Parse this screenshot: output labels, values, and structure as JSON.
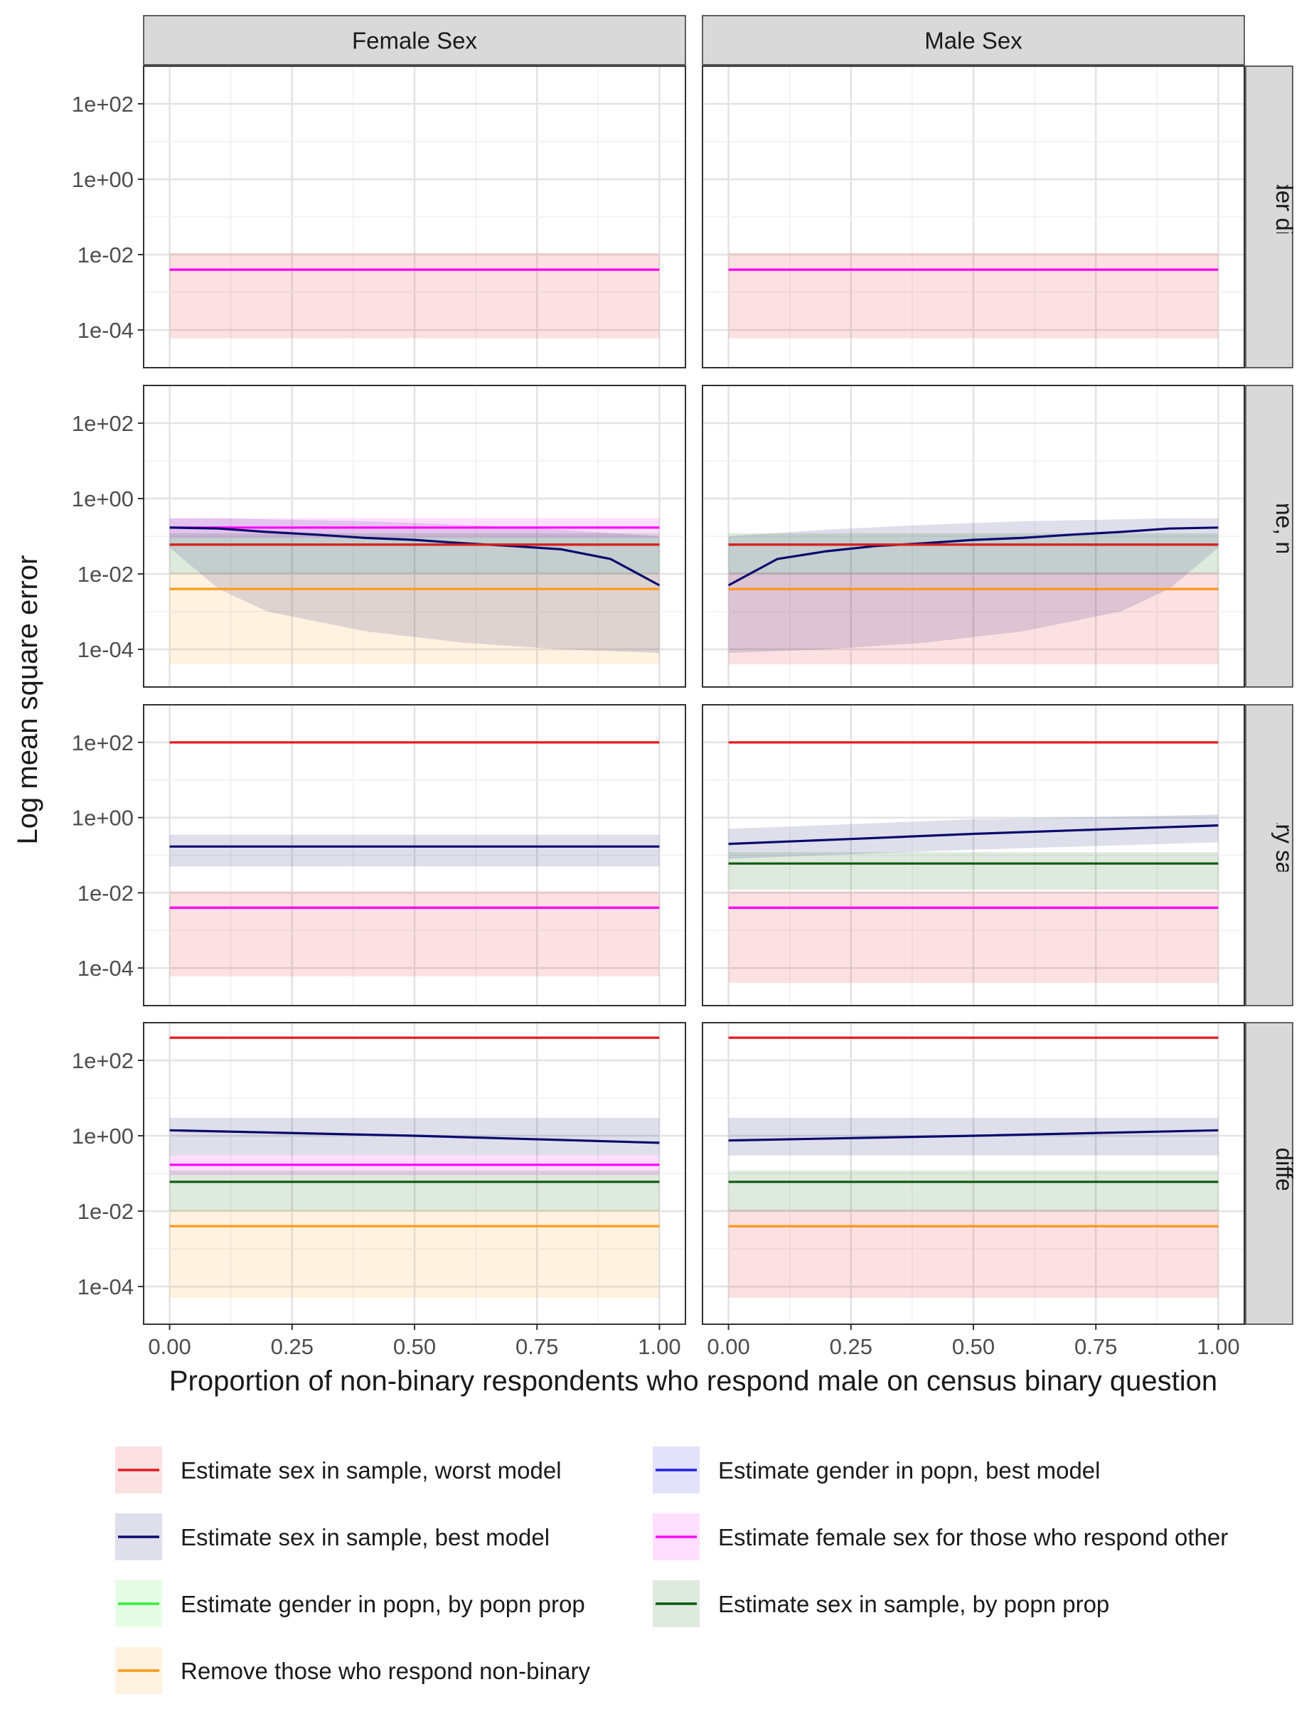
{
  "chart_data": {
    "type": "line",
    "title": "",
    "xlabel": "Proportion of non-binary respondents who respond male on census binary question",
    "ylabel": "Log mean square error",
    "x_scale": "linear",
    "y_scale": "log10",
    "xlim": [
      0,
      1
    ],
    "ylim": [
      1e-05,
      1000
    ],
    "grid": true,
    "legend_position": "bottom",
    "x_ticks": [
      0,
      0.25,
      0.5,
      0.75,
      1
    ],
    "x_tick_labels": [
      "0.00",
      "0.25",
      "0.50",
      "0.75",
      "1.00"
    ],
    "y_ticks": [
      0.0001,
      0.01,
      1,
      100
    ],
    "y_tick_labels": [
      "1e-04",
      "1e-02",
      "1e+00",
      "1e+02"
    ],
    "facet_columns": [
      "Female Sex",
      "Male Sex"
    ],
    "facet_rows": [
      "No gender differences",
      "emale same, non-binary d",
      ", non-binary same, male d",
      "All different"
    ],
    "series": [
      {
        "key": "worst",
        "name": "Estimate sex in sample, worst model",
        "color": "#e41a1c"
      },
      {
        "key": "gender_best",
        "name": "Estimate gender in popn, best model",
        "color": "#1f1fe0"
      },
      {
        "key": "best",
        "name": "Estimate sex in sample, best model",
        "color": "#0a0a6e"
      },
      {
        "key": "female_other",
        "name": "Estimate female sex for those who respond other",
        "color": "#ff00ff"
      },
      {
        "key": "gender_prop",
        "name": "Estimate gender in popn, by popn prop",
        "color": "#33ee33"
      },
      {
        "key": "sex_prop",
        "name": "Estimate sex in sample, by popn prop",
        "color": "#0b5a0b"
      },
      {
        "key": "remove",
        "name": "Remove those who respond non-binary",
        "color": "#ff9a1a"
      }
    ],
    "panels": [
      {
        "row": 0,
        "col": 0,
        "lines": [
          {
            "series": "sex_prop",
            "y": [
              0.004,
              0.004
            ]
          },
          {
            "series": "remove",
            "y": [
              0.004,
              0.004
            ]
          },
          {
            "series": "female_other",
            "y": [
              0.004,
              0.004
            ]
          }
        ],
        "bands": [
          {
            "series": "worst",
            "x": [
              0,
              1
            ],
            "lo": [
              6e-05,
              6e-05
            ],
            "hi": [
              0.011,
              0.011
            ]
          }
        ]
      },
      {
        "row": 0,
        "col": 1,
        "lines": [
          {
            "series": "sex_prop",
            "y": [
              0.004,
              0.004
            ]
          },
          {
            "series": "remove",
            "y": [
              0.004,
              0.004
            ]
          },
          {
            "series": "female_other",
            "y": [
              0.004,
              0.004
            ]
          }
        ],
        "bands": [
          {
            "series": "worst",
            "x": [
              0,
              1
            ],
            "lo": [
              6e-05,
              6e-05
            ],
            "hi": [
              0.011,
              0.011
            ]
          }
        ]
      },
      {
        "row": 1,
        "col": 0,
        "lines": [
          {
            "series": "female_other",
            "y": [
              0.17,
              0.17
            ]
          },
          {
            "series": "best",
            "x": [
              0,
              0.1,
              0.2,
              0.3,
              0.4,
              0.5,
              0.6,
              0.7,
              0.8,
              0.9,
              1
            ],
            "y": [
              0.17,
              0.16,
              0.13,
              0.11,
              0.09,
              0.08,
              0.065,
              0.055,
              0.045,
              0.025,
              0.005
            ]
          },
          {
            "series": "sex_prop",
            "y": [
              0.06,
              0.06
            ]
          },
          {
            "series": "worst",
            "y": [
              0.06,
              0.06
            ]
          },
          {
            "series": "remove",
            "y": [
              0.004,
              0.004
            ]
          }
        ],
        "bands": [
          {
            "series": "remove",
            "x": [
              0,
              1
            ],
            "lo": [
              4e-05,
              4e-05
            ],
            "hi": [
              0.011,
              0.011
            ]
          },
          {
            "series": "best",
            "x": [
              0,
              0.1,
              0.2,
              0.4,
              0.6,
              0.8,
              1
            ],
            "lo": [
              0.05,
              0.004,
              0.001,
              0.0003,
              0.00015,
              0.0001,
              8e-05
            ],
            "hi": [
              0.3,
              0.3,
              0.28,
              0.25,
              0.2,
              0.15,
              0.1
            ]
          },
          {
            "series": "female_other",
            "x": [
              0,
              1
            ],
            "lo": [
              0.09,
              0.09
            ],
            "hi": [
              0.3,
              0.3
            ]
          },
          {
            "series": "sex_prop",
            "x": [
              0,
              1
            ],
            "lo": [
              0.01,
              0.01
            ],
            "hi": [
              0.12,
              0.12
            ]
          }
        ]
      },
      {
        "row": 1,
        "col": 1,
        "lines": [
          {
            "series": "best",
            "x": [
              0,
              0.1,
              0.2,
              0.3,
              0.4,
              0.5,
              0.6,
              0.7,
              0.8,
              0.9,
              1
            ],
            "y": [
              0.005,
              0.025,
              0.04,
              0.055,
              0.065,
              0.08,
              0.09,
              0.11,
              0.13,
              0.16,
              0.17
            ]
          },
          {
            "series": "sex_prop",
            "y": [
              0.06,
              0.06
            ]
          },
          {
            "series": "worst",
            "y": [
              0.06,
              0.06
            ]
          },
          {
            "series": "female_other",
            "y": [
              0.004,
              0.004
            ]
          },
          {
            "series": "remove",
            "y": [
              0.004,
              0.004
            ]
          }
        ],
        "bands": [
          {
            "series": "worst",
            "x": [
              0,
              1
            ],
            "lo": [
              4e-05,
              4e-05
            ],
            "hi": [
              0.011,
              0.011
            ]
          },
          {
            "series": "best",
            "x": [
              0,
              0.2,
              0.4,
              0.6,
              0.8,
              0.9,
              1
            ],
            "lo": [
              8e-05,
              0.0001,
              0.00015,
              0.0003,
              0.001,
              0.004,
              0.05
            ],
            "hi": [
              0.1,
              0.15,
              0.2,
              0.25,
              0.28,
              0.3,
              0.3
            ]
          },
          {
            "series": "sex_prop",
            "x": [
              0,
              1
            ],
            "lo": [
              0.01,
              0.01
            ],
            "hi": [
              0.12,
              0.12
            ]
          }
        ]
      },
      {
        "row": 2,
        "col": 0,
        "lines": [
          {
            "series": "worst",
            "y": [
              100,
              100
            ]
          },
          {
            "series": "best",
            "y": [
              0.17,
              0.17
            ]
          },
          {
            "series": "sex_prop",
            "y": [
              0.004,
              0.004
            ]
          },
          {
            "series": "remove",
            "y": [
              0.004,
              0.004
            ]
          },
          {
            "series": "female_other",
            "y": [
              0.004,
              0.004
            ]
          }
        ],
        "bands": [
          {
            "series": "worst",
            "x": [
              0,
              1
            ],
            "lo": [
              6e-05,
              6e-05
            ],
            "hi": [
              0.011,
              0.011
            ]
          },
          {
            "series": "best",
            "x": [
              0,
              1
            ],
            "lo": [
              0.05,
              0.05
            ],
            "hi": [
              0.35,
              0.35
            ]
          }
        ]
      },
      {
        "row": 2,
        "col": 1,
        "lines": [
          {
            "series": "worst",
            "y": [
              100,
              100
            ]
          },
          {
            "series": "best",
            "x": [
              0,
              0.25,
              0.5,
              0.75,
              1
            ],
            "y": [
              0.2,
              0.27,
              0.37,
              0.48,
              0.62
            ]
          },
          {
            "series": "sex_prop",
            "y": [
              0.06,
              0.06
            ]
          },
          {
            "series": "remove",
            "y": [
              0.004,
              0.004
            ]
          },
          {
            "series": "female_other",
            "y": [
              0.004,
              0.004
            ]
          }
        ],
        "bands": [
          {
            "series": "worst",
            "x": [
              0,
              1
            ],
            "lo": [
              4e-05,
              4e-05
            ],
            "hi": [
              0.011,
              0.011
            ]
          },
          {
            "series": "best",
            "x": [
              0,
              0.5,
              1
            ],
            "lo": [
              0.08,
              0.14,
              0.22
            ],
            "hi": [
              0.5,
              0.9,
              1.2
            ]
          },
          {
            "series": "sex_prop",
            "x": [
              0,
              1
            ],
            "lo": [
              0.012,
              0.012
            ],
            "hi": [
              0.12,
              0.12
            ]
          }
        ]
      },
      {
        "row": 3,
        "col": 0,
        "lines": [
          {
            "series": "worst",
            "y": [
              400,
              400
            ]
          },
          {
            "series": "best",
            "x": [
              0,
              0.5,
              1
            ],
            "y": [
              1.4,
              1.0,
              0.65
            ]
          },
          {
            "series": "female_other",
            "y": [
              0.17,
              0.17
            ]
          },
          {
            "series": "sex_prop",
            "y": [
              0.06,
              0.06
            ]
          },
          {
            "series": "remove",
            "y": [
              0.004,
              0.004
            ]
          }
        ],
        "bands": [
          {
            "series": "remove",
            "x": [
              0,
              1
            ],
            "lo": [
              5e-05,
              5e-05
            ],
            "hi": [
              0.011,
              0.011
            ]
          },
          {
            "series": "best",
            "x": [
              0,
              1
            ],
            "lo": [
              0.3,
              0.3
            ],
            "hi": [
              3,
              3
            ]
          },
          {
            "series": "female_other",
            "x": [
              0,
              1
            ],
            "lo": [
              0.09,
              0.09
            ],
            "hi": [
              0.3,
              0.3
            ]
          },
          {
            "series": "sex_prop",
            "x": [
              0,
              1
            ],
            "lo": [
              0.01,
              0.01
            ],
            "hi": [
              0.12,
              0.12
            ]
          }
        ]
      },
      {
        "row": 3,
        "col": 1,
        "lines": [
          {
            "series": "worst",
            "y": [
              400,
              400
            ]
          },
          {
            "series": "best",
            "x": [
              0,
              0.5,
              1
            ],
            "y": [
              0.75,
              1.0,
              1.4
            ]
          },
          {
            "series": "sex_prop",
            "y": [
              0.06,
              0.06
            ]
          },
          {
            "series": "female_other",
            "y": [
              0.004,
              0.004
            ]
          },
          {
            "series": "remove",
            "y": [
              0.004,
              0.004
            ]
          }
        ],
        "bands": [
          {
            "series": "worst",
            "x": [
              0,
              1
            ],
            "lo": [
              5e-05,
              5e-05
            ],
            "hi": [
              0.011,
              0.011
            ]
          },
          {
            "series": "best",
            "x": [
              0,
              1
            ],
            "lo": [
              0.3,
              0.3
            ],
            "hi": [
              3,
              3
            ]
          },
          {
            "series": "sex_prop",
            "x": [
              0,
              1
            ],
            "lo": [
              0.01,
              0.01
            ],
            "hi": [
              0.12,
              0.12
            ]
          }
        ]
      }
    ]
  }
}
